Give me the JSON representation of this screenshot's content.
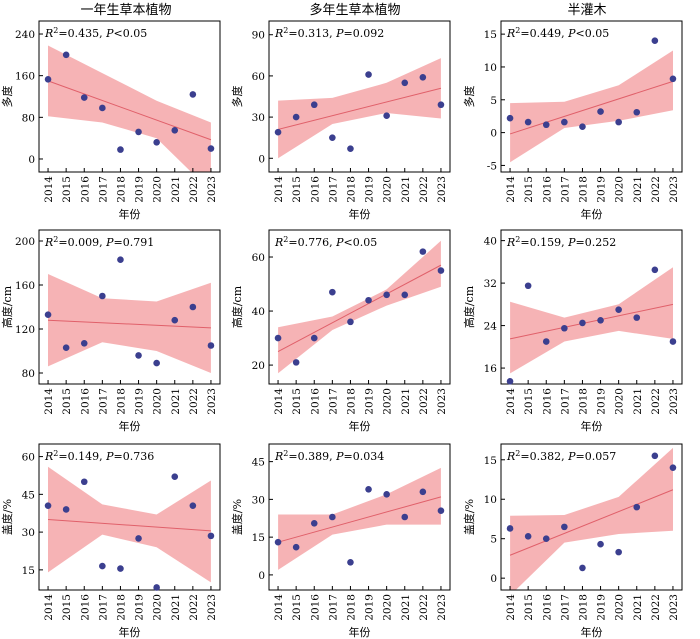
{
  "colors": {
    "band": "#f4a6a8",
    "line": "#e0606a",
    "point": "#3b3f8f"
  },
  "column_titles": [
    "一年生草本植物",
    "多年生草本植物",
    "半灌木"
  ],
  "chart_data": [
    {
      "type": "scatter",
      "row": 0,
      "col": 0,
      "ylabel": "多度",
      "xlabel": "年份",
      "r2": "0.435",
      "p": "<0.05",
      "ylim": [
        -25,
        265
      ],
      "yticks": [
        0,
        80,
        160,
        240
      ],
      "x": [
        "2014",
        "2015",
        "2016",
        "2017",
        "2018",
        "2019",
        "2020",
        "2021",
        "2022",
        "2023"
      ],
      "values": [
        153,
        200,
        118,
        98,
        18,
        52,
        32,
        55,
        124,
        20
      ],
      "fit": [
        150,
        37
      ],
      "band_upper": [
        218,
        165,
        112,
        70
      ],
      "band_lower": [
        82,
        70,
        40,
        -62
      ]
    },
    {
      "type": "scatter",
      "row": 0,
      "col": 1,
      "ylabel": "多度",
      "xlabel": "年份",
      "r2": "0.313",
      "p": "0.092",
      "ylim": [
        -10,
        100
      ],
      "yticks": [
        0,
        30,
        60,
        90
      ],
      "x": [
        "2014",
        "2015",
        "2016",
        "2017",
        "2018",
        "2019",
        "2020",
        "2021",
        "2022",
        "2023"
      ],
      "values": [
        19,
        30,
        39,
        15,
        7,
        61,
        31,
        55,
        59,
        39
      ],
      "fit": [
        21,
        51
      ],
      "band_upper": [
        42,
        44,
        55,
        73
      ],
      "band_lower": [
        0,
        25,
        33,
        29
      ]
    },
    {
      "type": "scatter",
      "row": 0,
      "col": 2,
      "ylabel": "多度",
      "xlabel": "年份",
      "r2": "0.449",
      "p": "<0.05",
      "ylim": [
        -6,
        17
      ],
      "yticks": [
        -5,
        0,
        5,
        10,
        15
      ],
      "x": [
        "2014",
        "2015",
        "2016",
        "2017",
        "2018",
        "2019",
        "2020",
        "2021",
        "2022",
        "2023"
      ],
      "values": [
        2.2,
        1.6,
        1.2,
        1.6,
        0.9,
        3.2,
        1.6,
        3.1,
        14.0,
        8.2
      ],
      "fit": [
        -0.2,
        7.8
      ],
      "band_upper": [
        4.5,
        4.7,
        7.2,
        12.5
      ],
      "band_lower": [
        -4.5,
        0.7,
        1.8,
        3.4
      ]
    },
    {
      "type": "scatter",
      "row": 1,
      "col": 0,
      "ylabel": "高度/cm",
      "xlabel": "年份",
      "r2": "0.009",
      "p": "0.791",
      "ylim": [
        70,
        210
      ],
      "yticks": [
        80,
        120,
        160,
        200
      ],
      "x": [
        "2014",
        "2015",
        "2016",
        "2017",
        "2018",
        "2019",
        "2020",
        "2021",
        "2022",
        "2023"
      ],
      "values": [
        133,
        103,
        107,
        150,
        183,
        96,
        89,
        128,
        140,
        105
      ],
      "fit": [
        128,
        121
      ],
      "band_upper": [
        170,
        148,
        145,
        162
      ],
      "band_lower": [
        86,
        108,
        100,
        80
      ]
    },
    {
      "type": "scatter",
      "row": 1,
      "col": 1,
      "ylabel": "高度/cm",
      "xlabel": "年份",
      "r2": "0.776",
      "p": "<0.05",
      "ylim": [
        13,
        70
      ],
      "yticks": [
        20,
        40,
        60
      ],
      "x": [
        "2014",
        "2015",
        "2016",
        "2017",
        "2018",
        "2019",
        "2020",
        "2021",
        "2022",
        "2023"
      ],
      "values": [
        30,
        21,
        30,
        47,
        36,
        44,
        46,
        46,
        62,
        55
      ],
      "fit": [
        25,
        57
      ],
      "band_upper": [
        34,
        38,
        48,
        66
      ],
      "band_lower": [
        17,
        33,
        42,
        49
      ]
    },
    {
      "type": "scatter",
      "row": 1,
      "col": 2,
      "ylabel": "高度/cm",
      "xlabel": "年份",
      "r2": "0.159",
      "p": "0.252",
      "ylim": [
        13,
        42
      ],
      "yticks": [
        16,
        24,
        32,
        40
      ],
      "x": [
        "2014",
        "2015",
        "2016",
        "2017",
        "2018",
        "2019",
        "2020",
        "2021",
        "2022",
        "2023"
      ],
      "values": [
        13.5,
        31.5,
        21,
        23.5,
        24.5,
        25,
        27,
        25.5,
        34.5,
        21
      ],
      "fit": [
        21.5,
        28
      ],
      "band_upper": [
        28.5,
        25.5,
        28,
        35
      ],
      "band_lower": [
        15,
        21,
        23,
        21.5
      ]
    },
    {
      "type": "scatter",
      "row": 2,
      "col": 0,
      "ylabel": "盖度/%",
      "xlabel": "年份",
      "r2": "0.149",
      "p": "0.736",
      "ylim": [
        7,
        65
      ],
      "yticks": [
        15,
        30,
        45,
        60
      ],
      "x": [
        "2014",
        "2015",
        "2016",
        "2017",
        "2018",
        "2019",
        "2020",
        "2021",
        "2022",
        "2023"
      ],
      "values": [
        40.5,
        39,
        50,
        16.5,
        15.5,
        27.5,
        8,
        52,
        40.5,
        28.5
      ],
      "fit": [
        35,
        30.5
      ],
      "band_upper": [
        56,
        41,
        37,
        50.5
      ],
      "band_lower": [
        14,
        29,
        24,
        10
      ]
    },
    {
      "type": "scatter",
      "row": 2,
      "col": 1,
      "ylabel": "盖度/%",
      "xlabel": "年份",
      "r2": "0.389",
      "p": "0.034",
      "ylim": [
        -6,
        52
      ],
      "yticks": [
        0,
        15,
        30,
        45
      ],
      "x": [
        "2014",
        "2015",
        "2016",
        "2017",
        "2018",
        "2019",
        "2020",
        "2021",
        "2022",
        "2023"
      ],
      "values": [
        13,
        11,
        20.5,
        23,
        5,
        34,
        32,
        23,
        33,
        25.5
      ],
      "fit": [
        13,
        31
      ],
      "band_upper": [
        24,
        24,
        32,
        42.5
      ],
      "band_lower": [
        2,
        16,
        20,
        20
      ]
    },
    {
      "type": "scatter",
      "row": 2,
      "col": 2,
      "ylabel": "盖度/%",
      "xlabel": "年份",
      "r2": "0.382",
      "p": "0.057",
      "ylim": [
        -1.5,
        17
      ],
      "yticks": [
        0,
        5,
        10,
        15
      ],
      "x": [
        "2014",
        "2015",
        "2016",
        "2017",
        "2018",
        "2019",
        "2020",
        "2021",
        "2022",
        "2023"
      ],
      "values": [
        6.3,
        5.3,
        5.0,
        6.5,
        1.3,
        4.3,
        3.3,
        9.0,
        15.5,
        14.0
      ],
      "fit": [
        2.9,
        11.2
      ],
      "band_upper": [
        7.9,
        8.0,
        10.3,
        16.5
      ],
      "band_lower": [
        -2.2,
        4.5,
        5.6,
        6.0
      ]
    }
  ]
}
